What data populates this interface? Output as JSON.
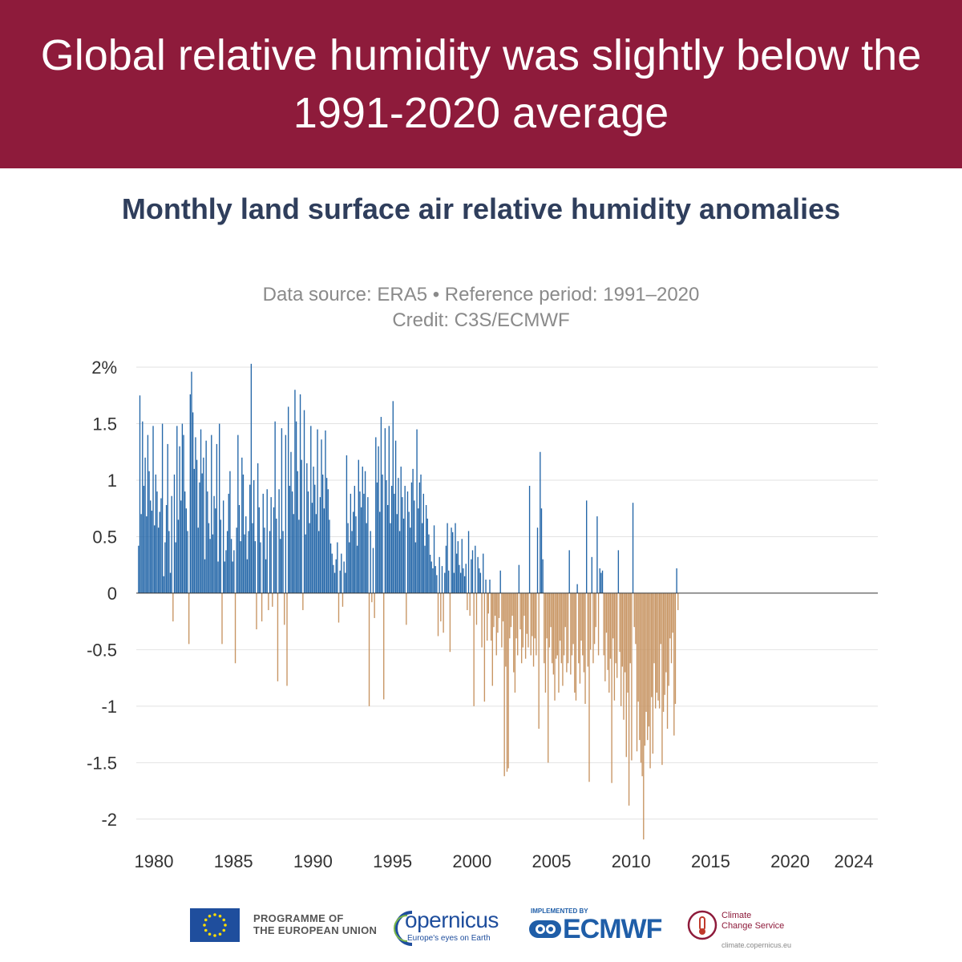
{
  "banner": {
    "headline": "Global relative humidity was slightly below the 1991-2020 average"
  },
  "footer": {
    "eu_line1": "PROGRAMME OF",
    "eu_line2": "THE EUROPEAN UNION",
    "copernicus_word": "opernicus",
    "copernicus_tagline": "Europe's eyes on Earth",
    "ecmwf_implemented": "IMPLEMENTED BY",
    "ecmwf_word": "ECMWF",
    "c3s_line1": "Climate",
    "c3s_line2": "Change Service",
    "c3s_url": "climate.copernicus.eu"
  },
  "colors": {
    "banner": "#8e1b3b",
    "positive": "#2366a8",
    "negative": "#c79462",
    "title": "#2f3e5c",
    "subtitle": "#8a8a8a"
  },
  "chart_data": {
    "type": "bar",
    "title": "Monthly land surface air relative humidity anomalies",
    "subtitle_line1": "Data source: ERA5 • Reference period: 1991–2020",
    "subtitle_line2": "Credit: C3S/ECMWF",
    "xlabel": "",
    "ylabel": "",
    "ylim": [
      -2.2,
      2.05
    ],
    "y_ticks": [
      2,
      1.5,
      1,
      0.5,
      0,
      -0.5,
      -1,
      -1.5,
      -2
    ],
    "y_tick_labels": [
      "2%",
      "1.5",
      "1",
      "0.5",
      "0",
      "-0.5",
      "-1",
      "-1.5",
      "-2"
    ],
    "x_ticks": [
      1980,
      1985,
      1990,
      1995,
      2000,
      2005,
      2010,
      2015,
      2020,
      2024
    ],
    "x_tick_labels": [
      "1980",
      "1985",
      "1990",
      "1995",
      "2000",
      "2005",
      "2010",
      "2015",
      "2020",
      "2024"
    ],
    "grid": true,
    "x_start": 1979.0,
    "months_per_year": 12,
    "values": [
      0.42,
      1.75,
      0.7,
      1.52,
      0.95,
      1.2,
      0.68,
      1.4,
      1.08,
      0.82,
      0.73,
      1.48,
      0.6,
      1.05,
      0.9,
      0.58,
      0.72,
      0.84,
      1.5,
      0.15,
      0.45,
      0.78,
      1.32,
      0.55,
      0.18,
      0.86,
      -0.25,
      1.05,
      0.45,
      1.48,
      0.65,
      1.3,
      0.82,
      1.5,
      1.4,
      0.9,
      0.75,
      0.55,
      -0.45,
      1.76,
      1.96,
      1.6,
      1.1,
      1.38,
      1.18,
      0.58,
      0.98,
      1.45,
      1.06,
      1.2,
      0.3,
      1.35,
      0.9,
      0.62,
      0.48,
      1.4,
      0.52,
      0.86,
      0.75,
      1.32,
      0.28,
      1.5,
      0.65,
      -0.45,
      0.82,
      0.28,
      0.38,
      0.55,
      0.88,
      1.08,
      0.48,
      0.28,
      0.38,
      -0.62,
      0.58,
      1.4,
      0.78,
      0.46,
      1.2,
      1.05,
      0.52,
      0.68,
      0.3,
      0.55,
      0.96,
      2.03,
      0.62,
      1.0,
      0.46,
      -0.32,
      1.15,
      0.76,
      0.45,
      -0.25,
      0.88,
      0.58,
      0.3,
      0.92,
      -0.15,
      0.55,
      0.85,
      -0.12,
      0.76,
      1.52,
      0.66,
      -0.78,
      0.92,
      0.48,
      1.46,
      0.55,
      -0.28,
      1.4,
      -0.82,
      1.65,
      0.95,
      1.25,
      0.9,
      0.7,
      1.8,
      1.52,
      1.08,
      0.65,
      1.76,
      1.18,
      -0.15,
      1.62,
      0.52,
      1.15,
      0.9,
      0.62,
      1.48,
      0.8,
      1.12,
      0.96,
      0.7,
      1.45,
      0.55,
      0.85,
      1.36,
      1.05,
      0.75,
      1.44,
      1.02,
      0.92,
      0.65,
      0.44,
      0.35,
      0.25,
      0.18,
      0.3,
      0.45,
      -0.26,
      0.2,
      0.35,
      -0.12,
      0.28,
      0.18,
      1.22,
      0.62,
      0.45,
      0.88,
      0.55,
      0.72,
      0.95,
      0.68,
      0.42,
      1.18,
      0.9,
      0.76,
      1.12,
      0.88,
      1.08,
      0.62,
      0.85,
      -1.0,
      0.55,
      -0.08,
      0.4,
      -0.22,
      1.38,
      0.98,
      1.3,
      0.72,
      1.56,
      1.05,
      -0.94,
      1.46,
      1.0,
      0.78,
      1.48,
      0.62,
      0.95,
      1.7,
      0.88,
      1.35,
      0.7,
      1.02,
      0.55,
      1.12,
      0.85,
      0.66,
      0.95,
      -0.28,
      0.9,
      0.72,
      0.58,
      0.98,
      1.1,
      0.82,
      0.45,
      1.45,
      0.75,
      0.98,
      1.05,
      0.62,
      0.88,
      0.42,
      0.78,
      0.66,
      0.52,
      0.34,
      0.28,
      0.22,
      0.6,
      0.24,
      0.16,
      -0.38,
      0.32,
      -0.25,
      0.24,
      -0.35,
      0.18,
      0.42,
      0.62,
      0.2,
      -0.52,
      0.58,
      0.54,
      0.18,
      0.62,
      0.35,
      0.46,
      0.25,
      0.18,
      0.48,
      0.22,
      0.15,
      0.26,
      -0.15,
      0.55,
      -0.2,
      0.3,
      0.38,
      -1.0,
      0.42,
      -0.28,
      0.32,
      0.22,
      0.18,
      -0.48,
      0.35,
      -0.96,
      0.12,
      -0.42,
      -0.18,
      0.12,
      -0.42,
      -0.82,
      -0.3,
      -0.2,
      -0.55,
      -0.35,
      -0.22,
      0.2,
      -0.48,
      -0.25,
      -1.62,
      -0.65,
      -1.58,
      -1.55,
      -0.4,
      -0.3,
      -0.2,
      -0.7,
      -0.88,
      -0.4,
      -0.55,
      0.25,
      -0.32,
      -0.62,
      -0.48,
      -0.2,
      -0.58,
      -0.36,
      -0.48,
      0.95,
      -0.55,
      -0.38,
      -0.65,
      -0.4,
      -0.55,
      0.58,
      -1.2,
      1.25,
      0.75,
      0.3,
      -0.62,
      -0.88,
      -0.4,
      -1.5,
      -0.48,
      -0.3,
      -0.62,
      -0.72,
      -0.95,
      -0.58,
      -0.55,
      -0.88,
      -0.42,
      -0.62,
      -0.82,
      -0.55,
      -0.3,
      -0.7,
      -0.62,
      0.38,
      -0.72,
      -0.55,
      -0.45,
      -0.88,
      -0.95,
      0.08,
      -0.62,
      -0.8,
      -0.42,
      -0.55,
      -0.7,
      -0.98,
      0.82,
      -0.65,
      -1.67,
      -0.5,
      0.32,
      -0.62,
      -0.45,
      -0.3,
      0.68,
      -0.55,
      0.22,
      0.18,
      0.2,
      -0.55,
      -0.78,
      -0.35,
      -0.68,
      -0.88,
      -0.58,
      -1.68,
      -0.4,
      -0.95,
      -0.62,
      -0.75,
      0.38,
      -0.52,
      -1.0,
      -0.65,
      -1.12,
      -0.7,
      -1.45,
      -0.88,
      -1.88,
      -0.62,
      -1.48,
      0.8,
      -0.3,
      -0.45,
      -1.4,
      -0.96,
      -1.3,
      -1.5,
      -1.62,
      -2.18,
      -1.35,
      -1.05,
      -1.3,
      -1.18,
      -1.55,
      -0.92,
      -1.42,
      -0.62,
      -1.02,
      -0.88,
      -0.95,
      -1.02,
      -0.45,
      -1.52,
      -1.05,
      -0.9,
      -0.7,
      -1.2,
      -0.82,
      -0.4,
      -0.62,
      -0.35,
      -1.26,
      -0.98,
      0.22,
      -0.15
    ]
  }
}
